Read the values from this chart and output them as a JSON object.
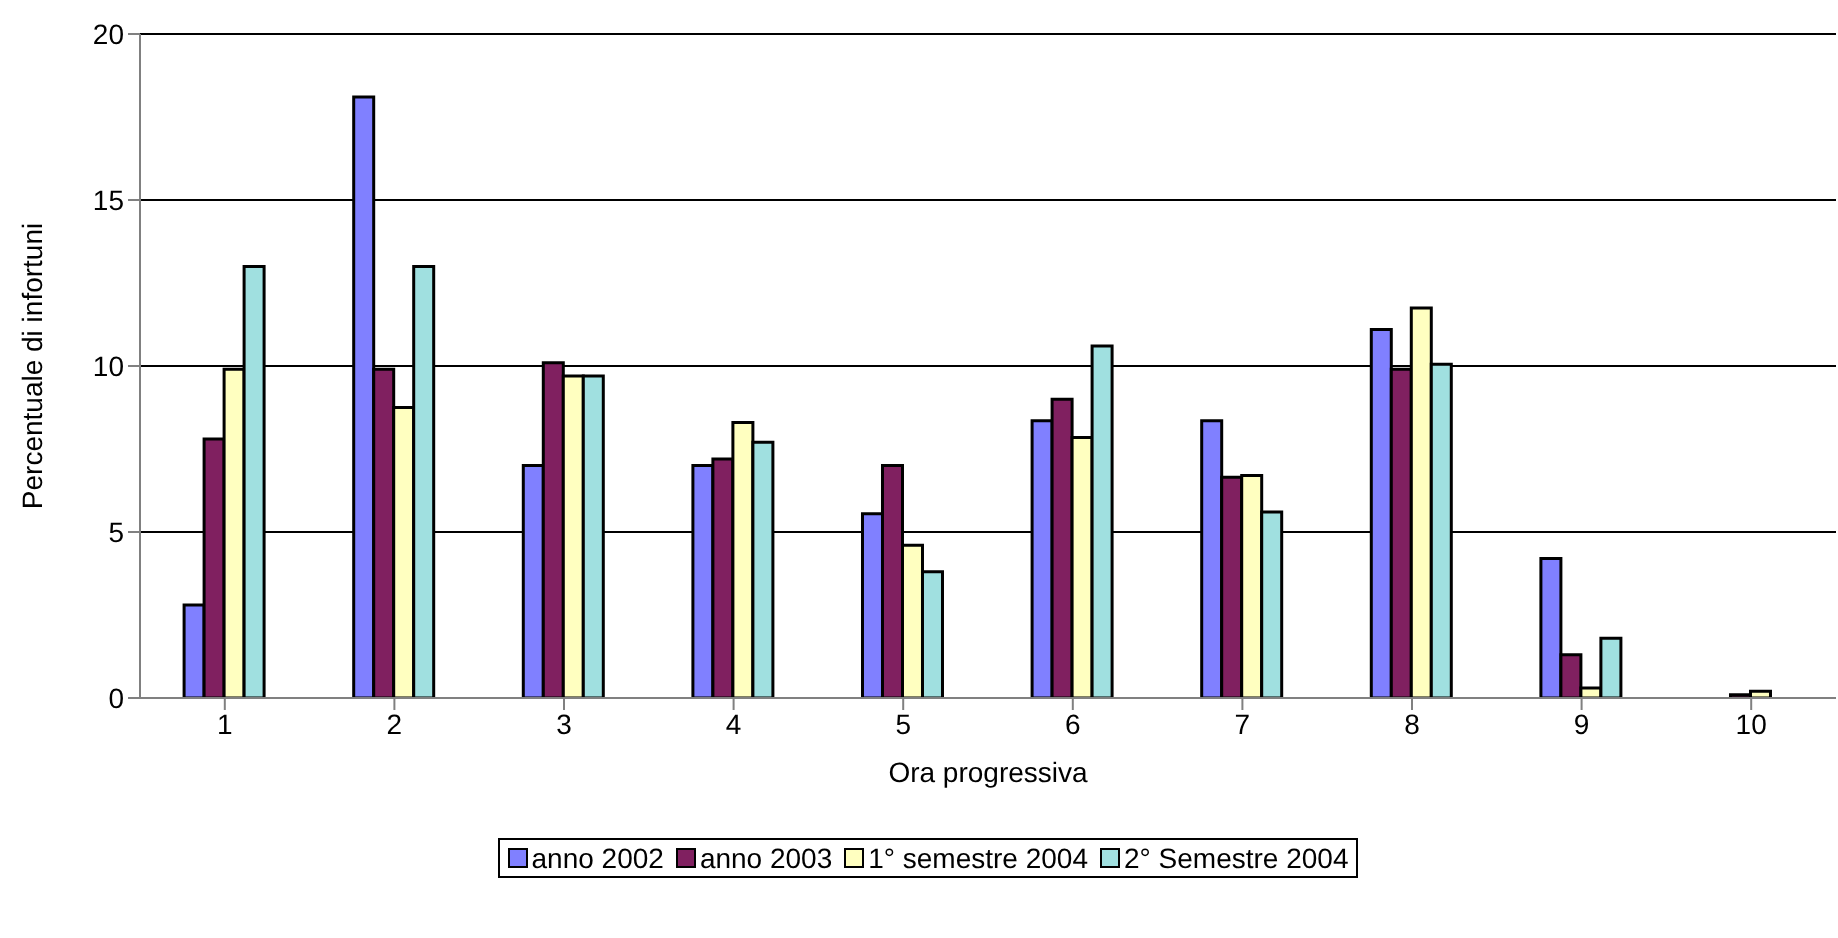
{
  "chart_data": {
    "type": "bar",
    "xlabel": "Ora progressiva",
    "ylabel": "Percentuale di infortuni",
    "categories": [
      "1",
      "2",
      "3",
      "4",
      "5",
      "6",
      "7",
      "8",
      "9",
      "10"
    ],
    "series": [
      {
        "name": "anno 2002",
        "color": "#8080ff",
        "values": [
          2.8,
          18.1,
          7.0,
          7.0,
          5.55,
          8.35,
          8.35,
          11.1,
          4.2,
          0
        ]
      },
      {
        "name": "anno 2003",
        "color": "#802060",
        "values": [
          7.8,
          9.9,
          10.1,
          7.2,
          7.0,
          9.0,
          6.65,
          9.9,
          1.3,
          0.1
        ]
      },
      {
        "name": "1° semestre 2004",
        "color": "#ffffc0",
        "values": [
          9.9,
          8.75,
          9.7,
          8.3,
          4.6,
          7.85,
          6.7,
          11.75,
          0.3,
          0.2
        ]
      },
      {
        "name": "2° Semestre 2004",
        "color": "#a0e0e0",
        "values": [
          13.0,
          13.0,
          9.7,
          7.7,
          3.8,
          10.6,
          5.6,
          10.05,
          1.8,
          0
        ]
      }
    ],
    "ylim": [
      0,
      20
    ],
    "yticks": [
      0,
      5,
      10,
      15,
      20
    ],
    "grid": "y",
    "legend": "bottom"
  }
}
